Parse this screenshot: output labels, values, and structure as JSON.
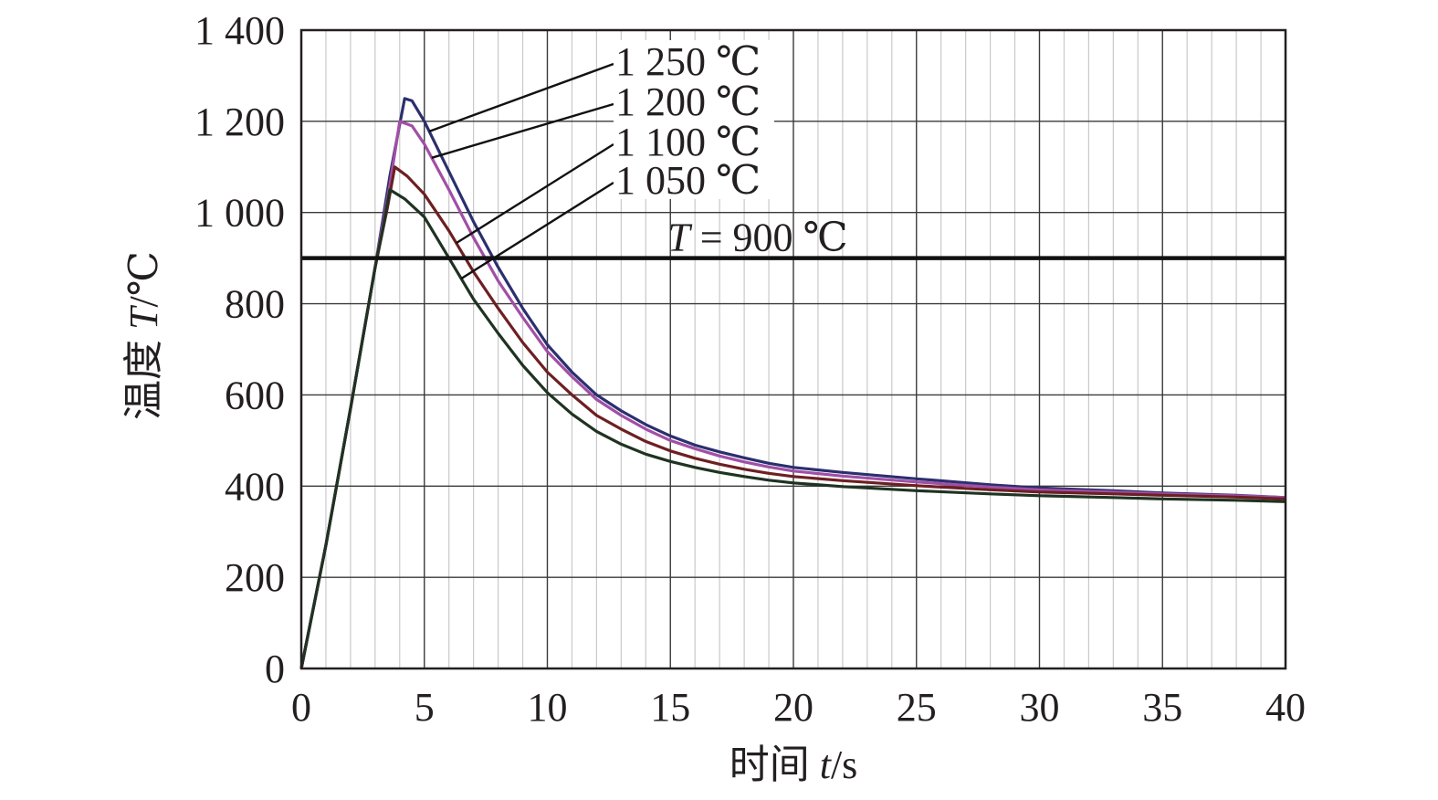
{
  "chart_data": {
    "type": "line",
    "xlabel": {
      "prefix": "时间 ",
      "var": "t",
      "unit": "/s"
    },
    "ylabel": {
      "prefix": "温度 ",
      "var": "T",
      "unit": "/℃"
    },
    "xlim": [
      0,
      40
    ],
    "ylim": [
      0,
      1400
    ],
    "x_ticks": [
      0,
      5,
      10,
      15,
      20,
      25,
      30,
      35,
      40
    ],
    "x_tick_labels": [
      "0",
      "5",
      "10",
      "15",
      "20",
      "25",
      "30",
      "35",
      "40"
    ],
    "y_ticks": [
      0,
      200,
      400,
      600,
      800,
      1000,
      1200,
      1400
    ],
    "y_tick_labels": [
      "0",
      "200",
      "400",
      "600",
      "800",
      "1 000",
      "1 200",
      "1 400"
    ],
    "grid": {
      "major_x": true,
      "major_y": true,
      "minor_x_step": 1
    },
    "reference_line": {
      "y": 900,
      "label_var": "T",
      "label_rest": " = 900 ℃"
    },
    "series": [
      {
        "name": "1 250 ℃",
        "color": "#2b2f6e",
        "x": [
          0,
          1,
          2,
          3,
          3.6,
          4.2,
          4.5,
          5,
          6,
          7,
          8,
          9,
          10,
          11,
          12,
          13,
          14,
          15,
          16,
          17,
          18,
          19,
          20,
          22,
          25,
          28,
          30,
          33,
          35,
          38,
          40
        ],
        "y": [
          0,
          270,
          570,
          880,
          1080,
          1250,
          1245,
          1200,
          1090,
          980,
          880,
          790,
          710,
          650,
          600,
          565,
          535,
          510,
          490,
          475,
          462,
          450,
          441,
          430,
          416,
          403,
          396,
          390,
          385,
          380,
          375
        ]
      },
      {
        "name": "1 200 ℃",
        "color": "#a14fa6",
        "x": [
          0,
          1,
          2,
          3,
          3.6,
          4.0,
          4.5,
          5,
          6,
          7,
          8,
          9,
          10,
          11,
          12,
          13,
          14,
          15,
          16,
          17,
          18,
          19,
          20,
          22,
          25,
          28,
          30,
          33,
          35,
          38,
          40
        ],
        "y": [
          0,
          270,
          570,
          880,
          1060,
          1200,
          1190,
          1150,
          1050,
          945,
          850,
          770,
          695,
          640,
          590,
          555,
          525,
          500,
          482,
          466,
          453,
          442,
          433,
          422,
          409,
          398,
          392,
          387,
          383,
          379,
          375
        ]
      },
      {
        "name": "1 100 ℃",
        "color": "#6d1f22",
        "x": [
          0,
          1,
          2,
          3,
          3.5,
          3.8,
          4.3,
          5,
          6,
          7,
          8,
          9,
          10,
          11,
          12,
          13,
          14,
          15,
          16,
          17,
          18,
          19,
          20,
          22,
          25,
          28,
          30,
          33,
          35,
          38,
          40
        ],
        "y": [
          0,
          270,
          570,
          880,
          1010,
          1100,
          1080,
          1040,
          960,
          870,
          790,
          715,
          650,
          600,
          555,
          525,
          498,
          477,
          461,
          448,
          437,
          428,
          421,
          412,
          401,
          392,
          387,
          383,
          380,
          376,
          372
        ]
      },
      {
        "name": "1 050 ℃",
        "color": "#1f3322",
        "x": [
          0,
          1,
          2,
          3,
          3.3,
          3.6,
          4.2,
          5,
          6,
          7,
          8,
          9,
          10,
          11,
          12,
          13,
          14,
          15,
          16,
          17,
          18,
          19,
          20,
          22,
          25,
          28,
          30,
          33,
          35,
          38,
          40
        ],
        "y": [
          0,
          270,
          570,
          880,
          960,
          1050,
          1030,
          990,
          900,
          810,
          735,
          665,
          605,
          558,
          520,
          492,
          470,
          454,
          441,
          430,
          421,
          413,
          407,
          399,
          390,
          383,
          379,
          375,
          372,
          369,
          366
        ]
      }
    ],
    "annotations": [
      {
        "series": "1 250 ℃",
        "text": "1 250 ℃",
        "point_x": 5.2
      },
      {
        "series": "1 200 ℃",
        "text": "1 200 ℃",
        "point_x": 5.3
      },
      {
        "series": "1 100 ℃",
        "text": "1 100 ℃",
        "point_x": 6.3
      },
      {
        "series": "1 050 ℃",
        "text": "1 050 ℃",
        "point_x": 6.5
      }
    ]
  }
}
